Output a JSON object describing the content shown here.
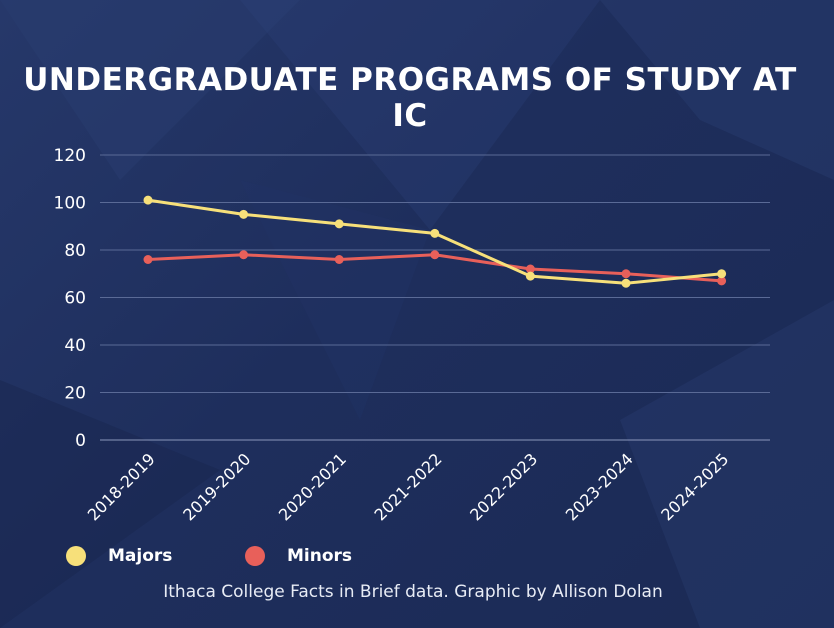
{
  "title": "UNDERGRADUATE PROGRAMS OF STUDY AT IC",
  "caption": "Ithaca College Facts in Brief data. Graphic by Allison Dolan",
  "colors": {
    "background": "#1f2f5c",
    "majors": "#f7e07a",
    "minors": "#e8605a",
    "grid": "#5a6a96",
    "text": "#ffffff"
  },
  "chart_data": {
    "type": "line",
    "title": "UNDERGRADUATE PROGRAMS OF STUDY AT IC",
    "categories": [
      "2018-2019",
      "2019-2020",
      "2020-2021",
      "2021-2022",
      "2022-2023",
      "2023-2024",
      "2024-2025"
    ],
    "series": [
      {
        "name": "Majors",
        "color": "#f7e07a",
        "values": [
          101,
          95,
          91,
          87,
          69,
          66,
          70
        ]
      },
      {
        "name": "Minors",
        "color": "#e8605a",
        "values": [
          76,
          78,
          76,
          78,
          72,
          70,
          67
        ]
      }
    ],
    "ylim": [
      0,
      120
    ],
    "yticks": [
      0,
      20,
      40,
      60,
      80,
      100,
      120
    ],
    "grid": true,
    "legend": "bottom-left"
  }
}
